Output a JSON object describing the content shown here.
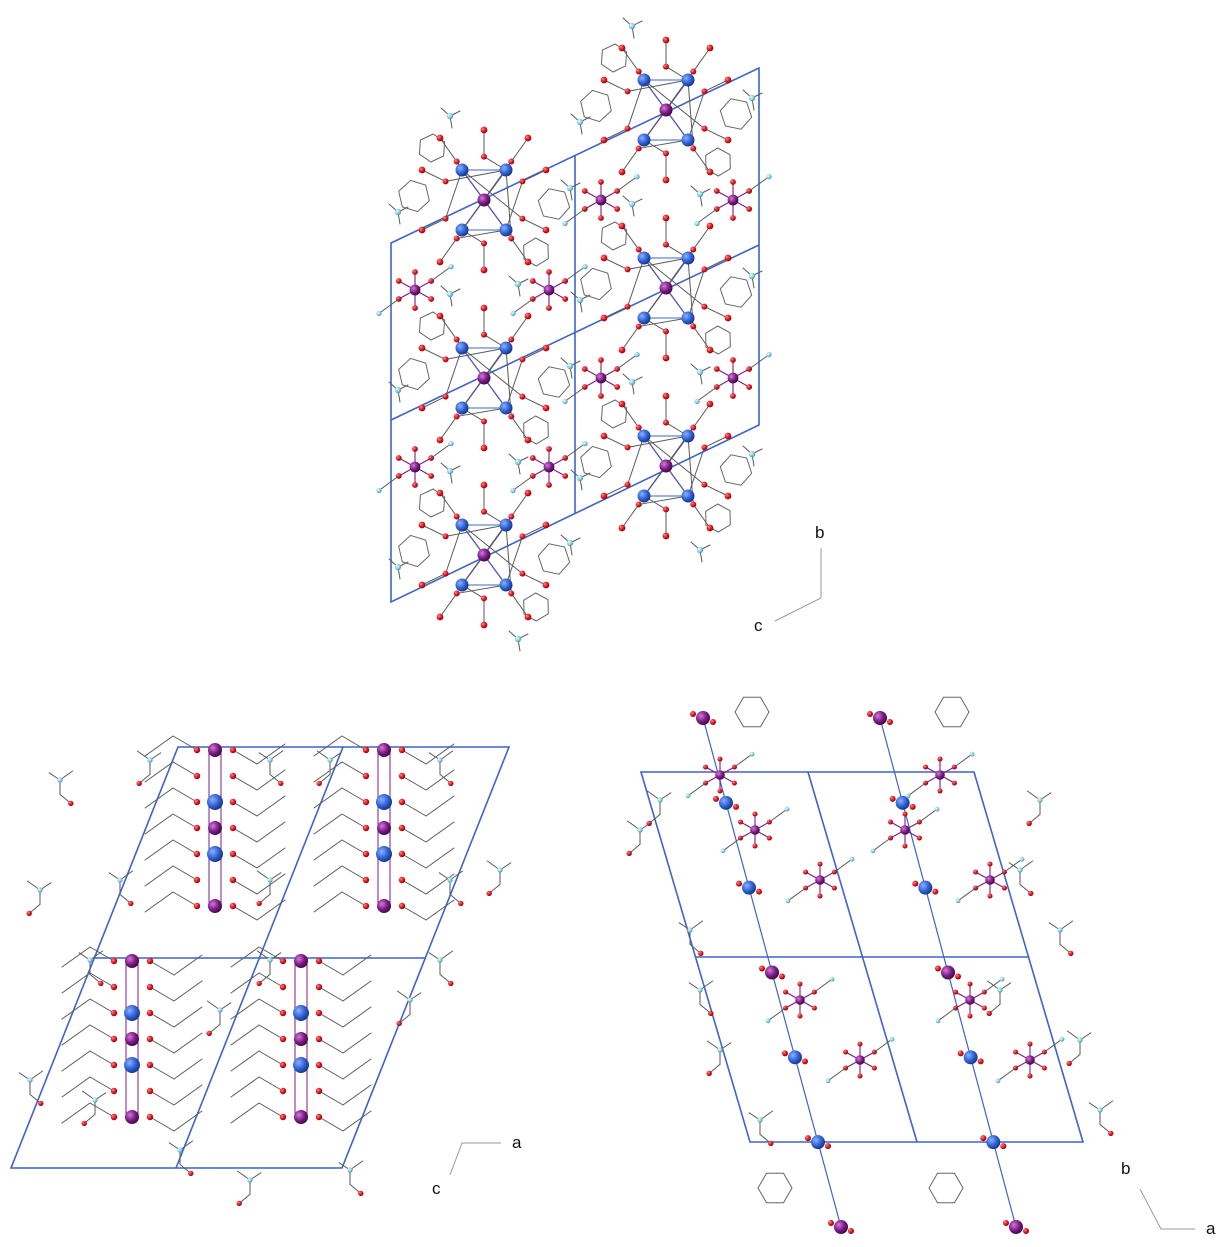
{
  "panels": [
    {
      "id": "top",
      "axis_labels": {
        "vertical": "b",
        "horizontal": "c"
      }
    },
    {
      "id": "bottom-left",
      "axis_labels": {
        "horizontal": "a",
        "vertical": "c"
      }
    },
    {
      "id": "bottom-right",
      "axis_labels": {
        "vertical": "b",
        "horizontal": "a"
      }
    }
  ],
  "colors": {
    "cell_edge": "#3e64c8",
    "metal_blue": "#2f63d6",
    "metal_purple": "#7d1c86",
    "oxygen": "#e0141e",
    "nitrogen": "#8fd1e2",
    "bond": "#555555",
    "axis_line": "#999999"
  }
}
